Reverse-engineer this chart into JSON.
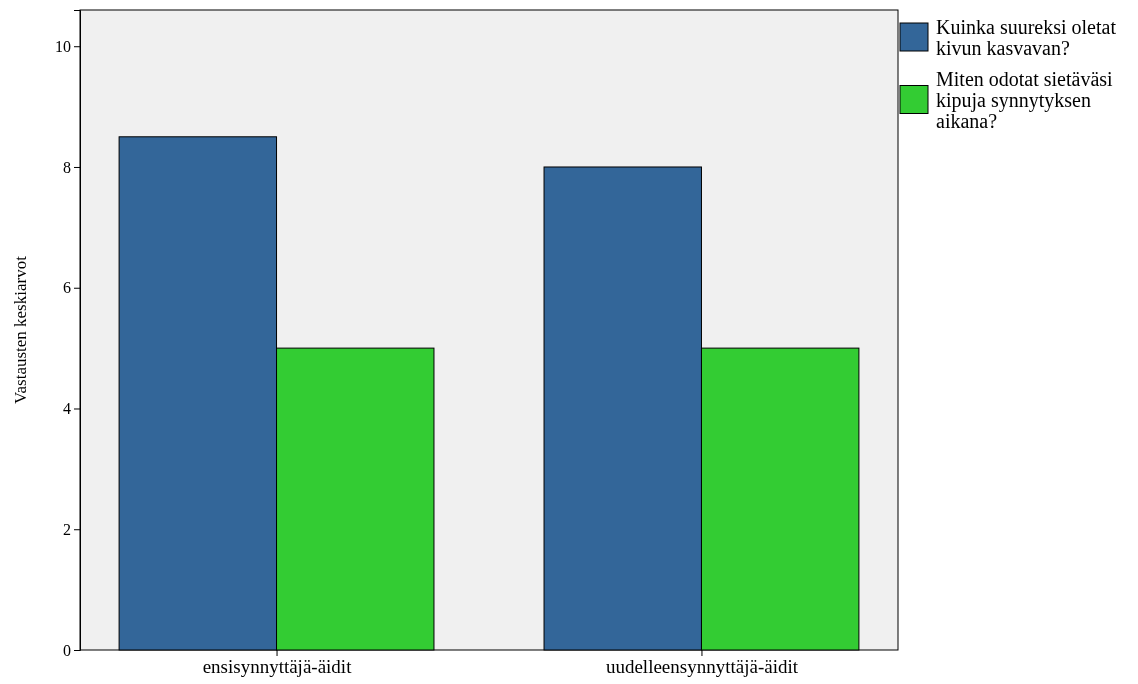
{
  "chart_data": {
    "type": "bar",
    "ylabel": "Vastausten keskiarvot",
    "categories": [
      "ensisynnyttäjä-äidit",
      "uudelleensynnyttäjä-äidit"
    ],
    "series": [
      {
        "name": "Kuinka suureksi oletat kivun kasvavan?",
        "color": "#336699",
        "values": [
          8.5,
          8.0
        ]
      },
      {
        "name": "Miten odotat sietäväsi kipuja synnytyksen aikana?",
        "color": "#33cc33",
        "values": [
          5.0,
          5.0
        ]
      }
    ],
    "ylim": [
      0,
      10.6
    ],
    "yticks": [
      0,
      2,
      4,
      6,
      8,
      10
    ],
    "grid": false,
    "legend": "top right"
  }
}
